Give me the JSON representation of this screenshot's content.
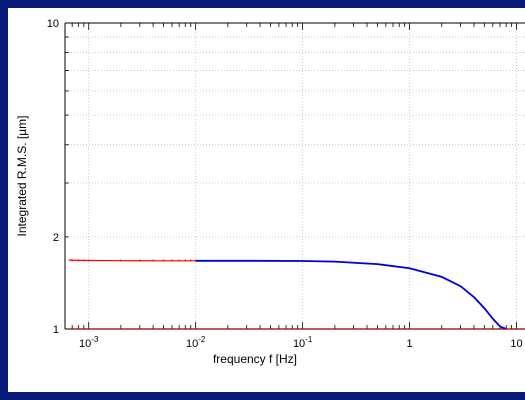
{
  "chart_data": {
    "type": "line",
    "title": "",
    "xlabel": "frequency f [Hz]",
    "ylabel": "Integrated R.M.S. [µm]",
    "x_scale": "log",
    "y_scale": "log",
    "xlim": [
      0.0006,
      12
    ],
    "ylim": [
      1,
      10
    ],
    "x_ticks": [
      0.001,
      0.01,
      0.1,
      1,
      10
    ],
    "x_tick_labels": [
      {
        "base": "10",
        "exp": "-3"
      },
      {
        "base": "10",
        "exp": "-2"
      },
      {
        "base": "10",
        "exp": "-1"
      },
      {
        "base": "1",
        "exp": ""
      },
      {
        "base": "10",
        "exp": ""
      }
    ],
    "y_ticks": [
      1,
      2,
      10
    ],
    "y_tick_labels": [
      "1",
      "2",
      "10"
    ],
    "grid": true,
    "series": [
      {
        "color": "#ff0000",
        "x": [
          0.00065,
          0.001,
          0.002,
          0.005,
          0.01
        ],
        "y": [
          1.68,
          1.675,
          1.672,
          1.671,
          1.67
        ]
      },
      {
        "color": "#0000dd",
        "x": [
          0.01,
          0.03,
          0.1,
          0.2,
          0.5,
          1,
          2,
          3,
          4,
          5,
          6,
          7,
          8
        ],
        "y": [
          1.67,
          1.67,
          1.668,
          1.66,
          1.63,
          1.58,
          1.48,
          1.38,
          1.27,
          1.17,
          1.08,
          1.02,
          1.0
        ]
      },
      {
        "color": "#8b0000",
        "x": [
          0.00065,
          12
        ],
        "y": [
          1.0,
          1.0
        ]
      }
    ]
  }
}
